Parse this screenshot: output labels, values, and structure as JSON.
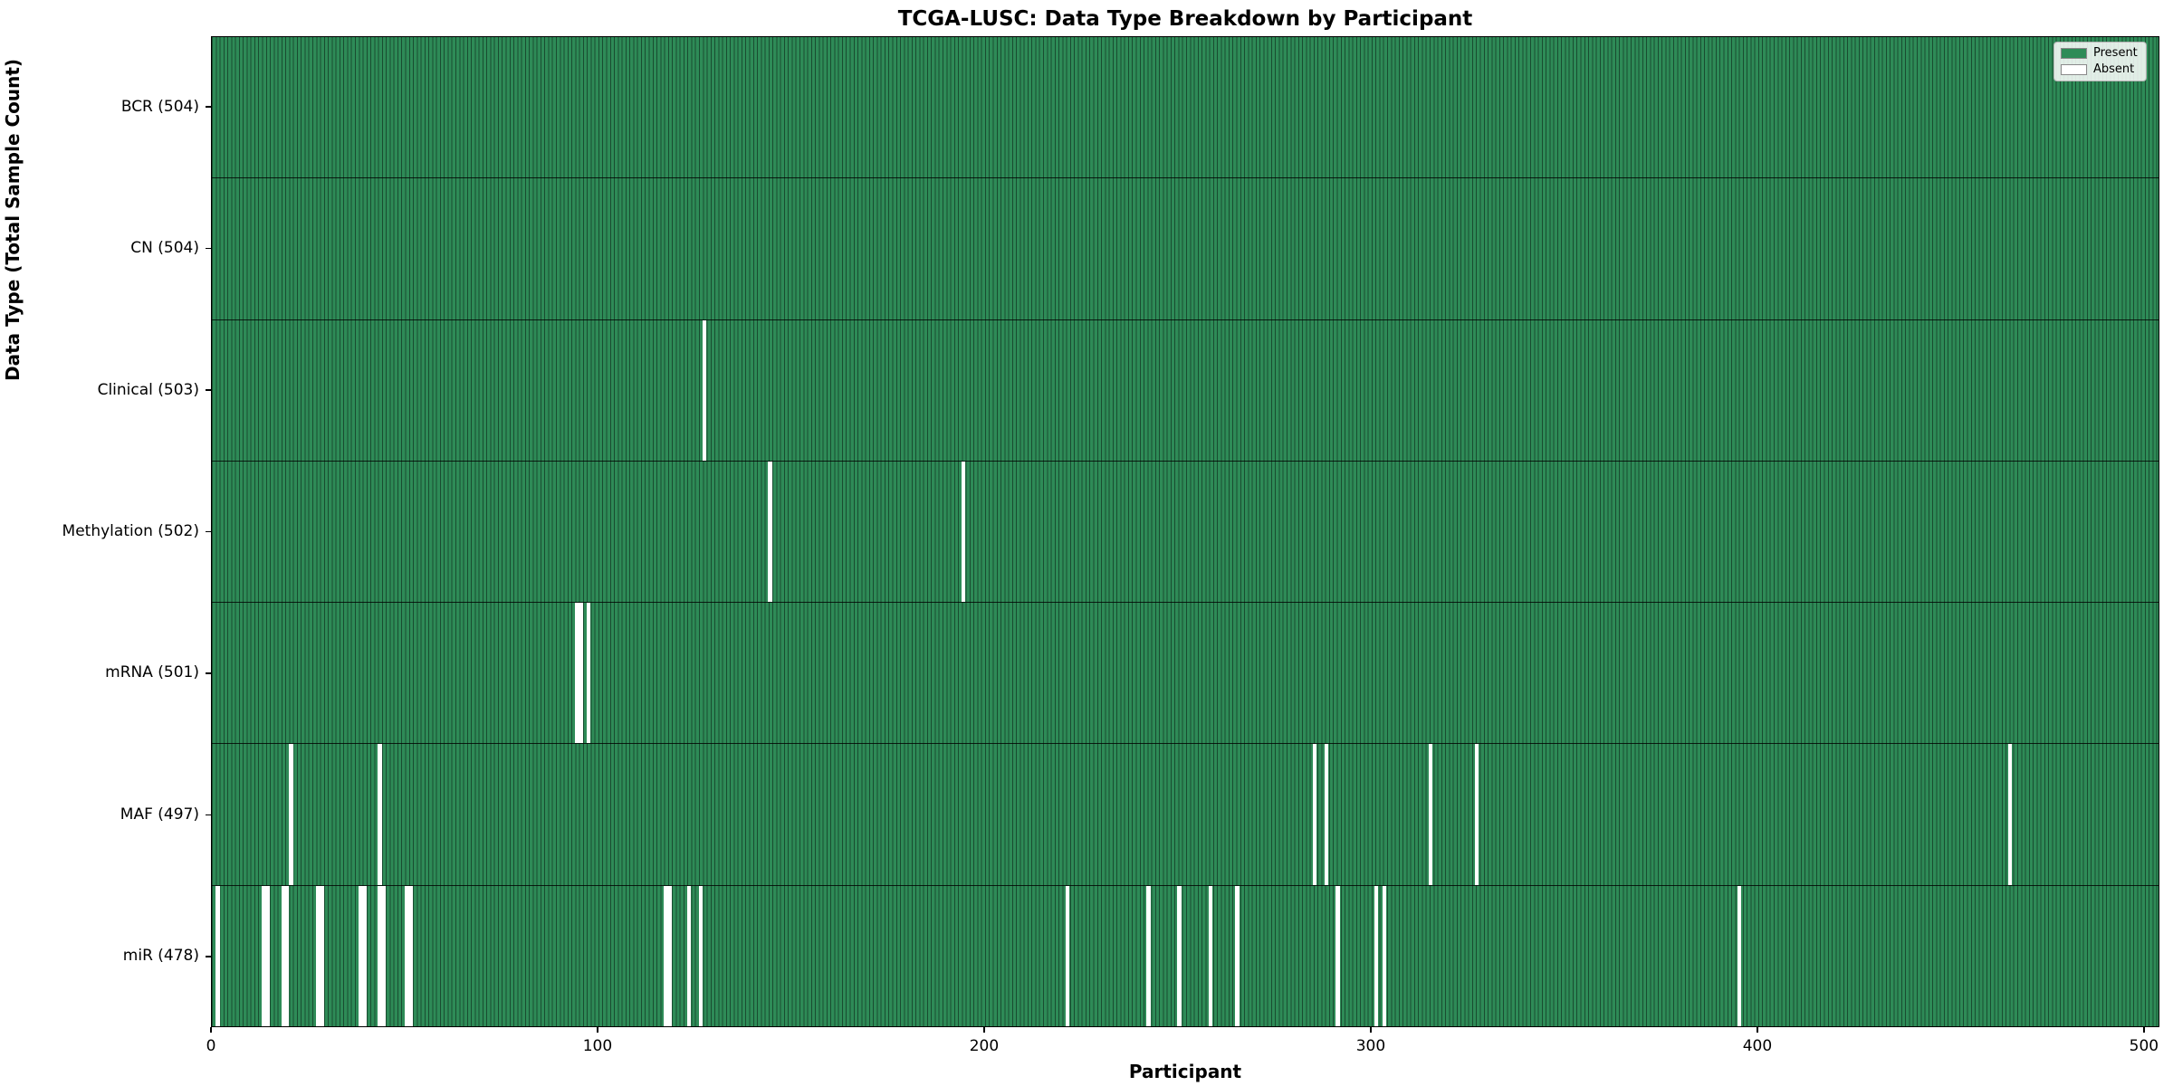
{
  "title": "TCGA-LUSC: Data Type Breakdown by Participant",
  "axes": {
    "xlabel": "Participant",
    "ylabel": "Data Type (Total Sample Count)"
  },
  "legend": {
    "entries": [
      {
        "label": "Present",
        "color": "#2e8b57"
      },
      {
        "label": "Absent",
        "color": "#ffffff"
      }
    ]
  },
  "colors": {
    "present": "#2e8b57",
    "absent": "#ffffff",
    "bar_edge": "rgba(0,0,0,0.45)"
  },
  "chart_data": {
    "type": "heatmap",
    "title": "TCGA-LUSC: Data Type Breakdown by Participant",
    "xlabel": "Participant",
    "ylabel": "Data Type (Total Sample Count)",
    "total_participants": 504,
    "x_ticks": [
      0,
      100,
      200,
      300,
      400,
      500
    ],
    "xlim": [
      0,
      504
    ],
    "legend_position": "upper right",
    "grid": false,
    "rows": [
      {
        "name": "BCR",
        "label": "BCR (504)",
        "present_count": 504,
        "absent_participants": []
      },
      {
        "name": "CN",
        "label": "CN (504)",
        "present_count": 504,
        "absent_participants": []
      },
      {
        "name": "Clinical",
        "label": "Clinical (503)",
        "present_count": 503,
        "absent_participants": [
          128
        ]
      },
      {
        "name": "Methylation",
        "label": "Methylation (502)",
        "present_count": 502,
        "absent_participants": [
          145,
          195
        ]
      },
      {
        "name": "mRNA",
        "label": "mRNA (501)",
        "present_count": 501,
        "absent_participants": [
          95,
          96,
          98
        ]
      },
      {
        "name": "MAF",
        "label": "MAF (497)",
        "present_count": 497,
        "absent_participants": [
          21,
          44,
          286,
          289,
          316,
          328,
          466
        ]
      },
      {
        "name": "miR",
        "label": "miR (478)",
        "present_count": 478,
        "absent_participants": [
          2,
          14,
          15,
          19,
          20,
          28,
          29,
          39,
          40,
          44,
          45,
          51,
          52,
          118,
          119,
          124,
          127,
          222,
          243,
          251,
          259,
          266,
          292,
          302,
          304,
          396
        ]
      }
    ]
  }
}
